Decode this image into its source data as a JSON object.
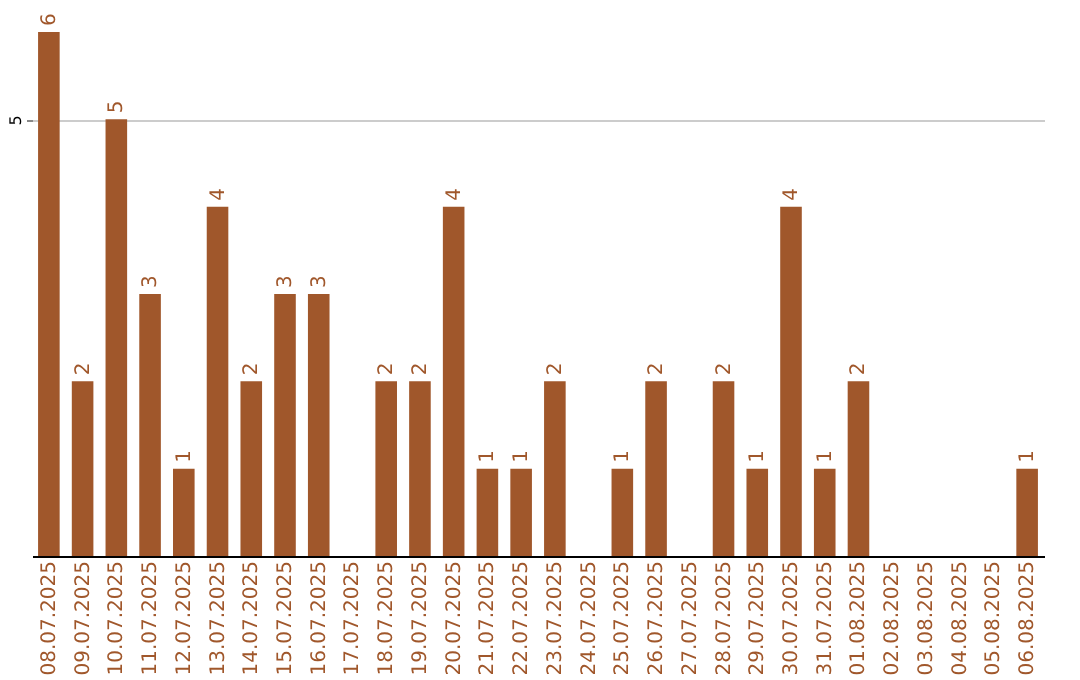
{
  "chart_data": {
    "type": "bar",
    "categories": [
      "08.07.2025",
      "09.07.2025",
      "10.07.2025",
      "11.07.2025",
      "12.07.2025",
      "13.07.2025",
      "14.07.2025",
      "15.07.2025",
      "16.07.2025",
      "17.07.2025",
      "18.07.2025",
      "19.07.2025",
      "20.07.2025",
      "21.07.2025",
      "22.07.2025",
      "23.07.2025",
      "24.07.2025",
      "25.07.2025",
      "26.07.2025",
      "27.07.2025",
      "28.07.2025",
      "29.07.2025",
      "30.07.2025",
      "31.07.2025",
      "01.08.2025",
      "02.08.2025",
      "03.08.2025",
      "04.08.2025",
      "05.08.2025",
      "06.08.2025"
    ],
    "values": [
      6,
      2,
      5,
      3,
      1,
      4,
      2,
      3,
      3,
      0,
      2,
      2,
      4,
      1,
      1,
      2,
      0,
      1,
      2,
      0,
      2,
      1,
      4,
      1,
      2,
      0,
      0,
      0,
      0,
      1
    ],
    "value_labels": [
      "6",
      "2",
      "5",
      "3",
      "1",
      "4",
      "2",
      "3",
      "3",
      null,
      "2",
      "2",
      "4",
      "1",
      "1",
      "2",
      null,
      "1",
      "2",
      null,
      "2",
      "1",
      "4",
      "1",
      "2",
      null,
      null,
      null,
      null,
      "1"
    ],
    "color": "#a0572b",
    "ylim": [
      0,
      6
    ],
    "yticks": [
      5
    ],
    "grid": "y"
  }
}
